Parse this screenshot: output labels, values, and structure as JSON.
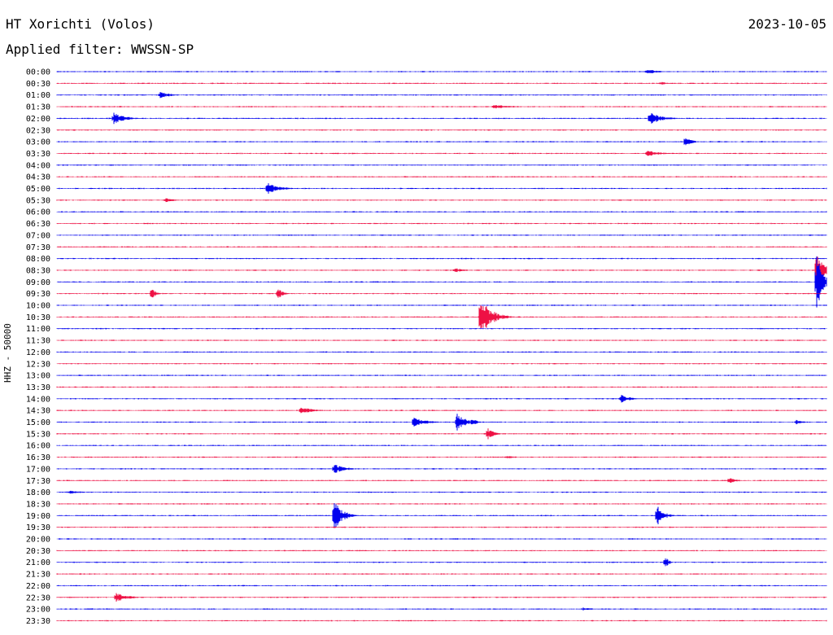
{
  "header": {
    "station": "HT Xorichti (Volos)",
    "date": "2023-10-05",
    "filter": "Applied filter: WWSSN-SP"
  },
  "channel_label": "HHZ - 50000",
  "chart_data": {
    "type": "line",
    "title": "HT Xorichti (Volos)",
    "subtitle": "Applied filter: WWSSN-SP",
    "ylabel": "HHZ - 50000",
    "xlabel": "",
    "row_labels": [
      "00:00",
      "00:30",
      "01:00",
      "01:30",
      "02:00",
      "02:30",
      "03:00",
      "03:30",
      "04:00",
      "04:30",
      "05:00",
      "05:30",
      "06:00",
      "06:30",
      "07:00",
      "07:30",
      "08:00",
      "08:30",
      "09:00",
      "09:30",
      "10:00",
      "10:30",
      "11:00",
      "11:30",
      "12:00",
      "12:30",
      "13:00",
      "13:30",
      "14:00",
      "14:30",
      "15:00",
      "15:30",
      "16:00",
      "16:30",
      "17:00",
      "17:30",
      "18:00",
      "18:30",
      "19:00",
      "19:30",
      "20:00",
      "20:30",
      "21:00",
      "21:30",
      "22:00",
      "22:30",
      "23:00",
      "23:30"
    ],
    "row_minutes": 30,
    "colors": [
      "#0000ee",
      "#ee1144"
    ],
    "grid": false,
    "events": [
      {
        "row": 0,
        "minute": 23.0,
        "amp": 3,
        "dur": 1.5
      },
      {
        "row": 1,
        "minute": 23.5,
        "amp": 2,
        "dur": 1.2
      },
      {
        "row": 2,
        "minute": 4.0,
        "amp": 4,
        "dur": 1.2
      },
      {
        "row": 3,
        "minute": 17.0,
        "amp": 3,
        "dur": 2.0
      },
      {
        "row": 4,
        "minute": 2.2,
        "amp": 8,
        "dur": 1.2
      },
      {
        "row": 4,
        "minute": 23.1,
        "amp": 8,
        "dur": 1.3
      },
      {
        "row": 6,
        "minute": 24.5,
        "amp": 8,
        "dur": 0.6
      },
      {
        "row": 7,
        "minute": 23.0,
        "amp": 4,
        "dur": 1.5
      },
      {
        "row": 10,
        "minute": 8.2,
        "amp": 8,
        "dur": 1.2
      },
      {
        "row": 11,
        "minute": 4.2,
        "amp": 3,
        "dur": 1.2
      },
      {
        "row": 17,
        "minute": 15.5,
        "amp": 3,
        "dur": 1.0
      },
      {
        "row": 17,
        "minute": 29.6,
        "amp": 28,
        "dur": 0.7
      },
      {
        "row": 18,
        "minute": 29.6,
        "amp": 40,
        "dur": 0.6
      },
      {
        "row": 19,
        "minute": 3.7,
        "amp": 8,
        "dur": 0.4
      },
      {
        "row": 19,
        "minute": 8.6,
        "amp": 8,
        "dur": 0.5
      },
      {
        "row": 21,
        "minute": 16.5,
        "amp": 26,
        "dur": 1.2
      },
      {
        "row": 21,
        "minute": 16.5,
        "amp": 16,
        "dur": 0.6
      },
      {
        "row": 28,
        "minute": 22.0,
        "amp": 5,
        "dur": 1.0
      },
      {
        "row": 29,
        "minute": 9.5,
        "amp": 5,
        "dur": 1.2
      },
      {
        "row": 30,
        "minute": 13.9,
        "amp": 7,
        "dur": 1.2
      },
      {
        "row": 30,
        "minute": 15.6,
        "amp": 14,
        "dur": 0.8
      },
      {
        "row": 30,
        "minute": 16.2,
        "amp": 6,
        "dur": 0.5
      },
      {
        "row": 30,
        "minute": 28.8,
        "amp": 3,
        "dur": 0.8
      },
      {
        "row": 31,
        "minute": 16.8,
        "amp": 7,
        "dur": 0.7
      },
      {
        "row": 33,
        "minute": 17.5,
        "amp": 2,
        "dur": 1.0
      },
      {
        "row": 34,
        "minute": 10.8,
        "amp": 6,
        "dur": 1.2
      },
      {
        "row": 35,
        "minute": 26.2,
        "amp": 4,
        "dur": 0.8
      },
      {
        "row": 36,
        "minute": 0.5,
        "amp": 2,
        "dur": 1.5
      },
      {
        "row": 38,
        "minute": 10.8,
        "amp": 20,
        "dur": 0.9
      },
      {
        "row": 38,
        "minute": 23.4,
        "amp": 14,
        "dur": 0.7
      },
      {
        "row": 42,
        "minute": 23.7,
        "amp": 8,
        "dur": 0.4
      },
      {
        "row": 45,
        "minute": 2.3,
        "amp": 6,
        "dur": 1.3
      },
      {
        "row": 46,
        "minute": 20.5,
        "amp": 2,
        "dur": 1.0
      }
    ]
  }
}
